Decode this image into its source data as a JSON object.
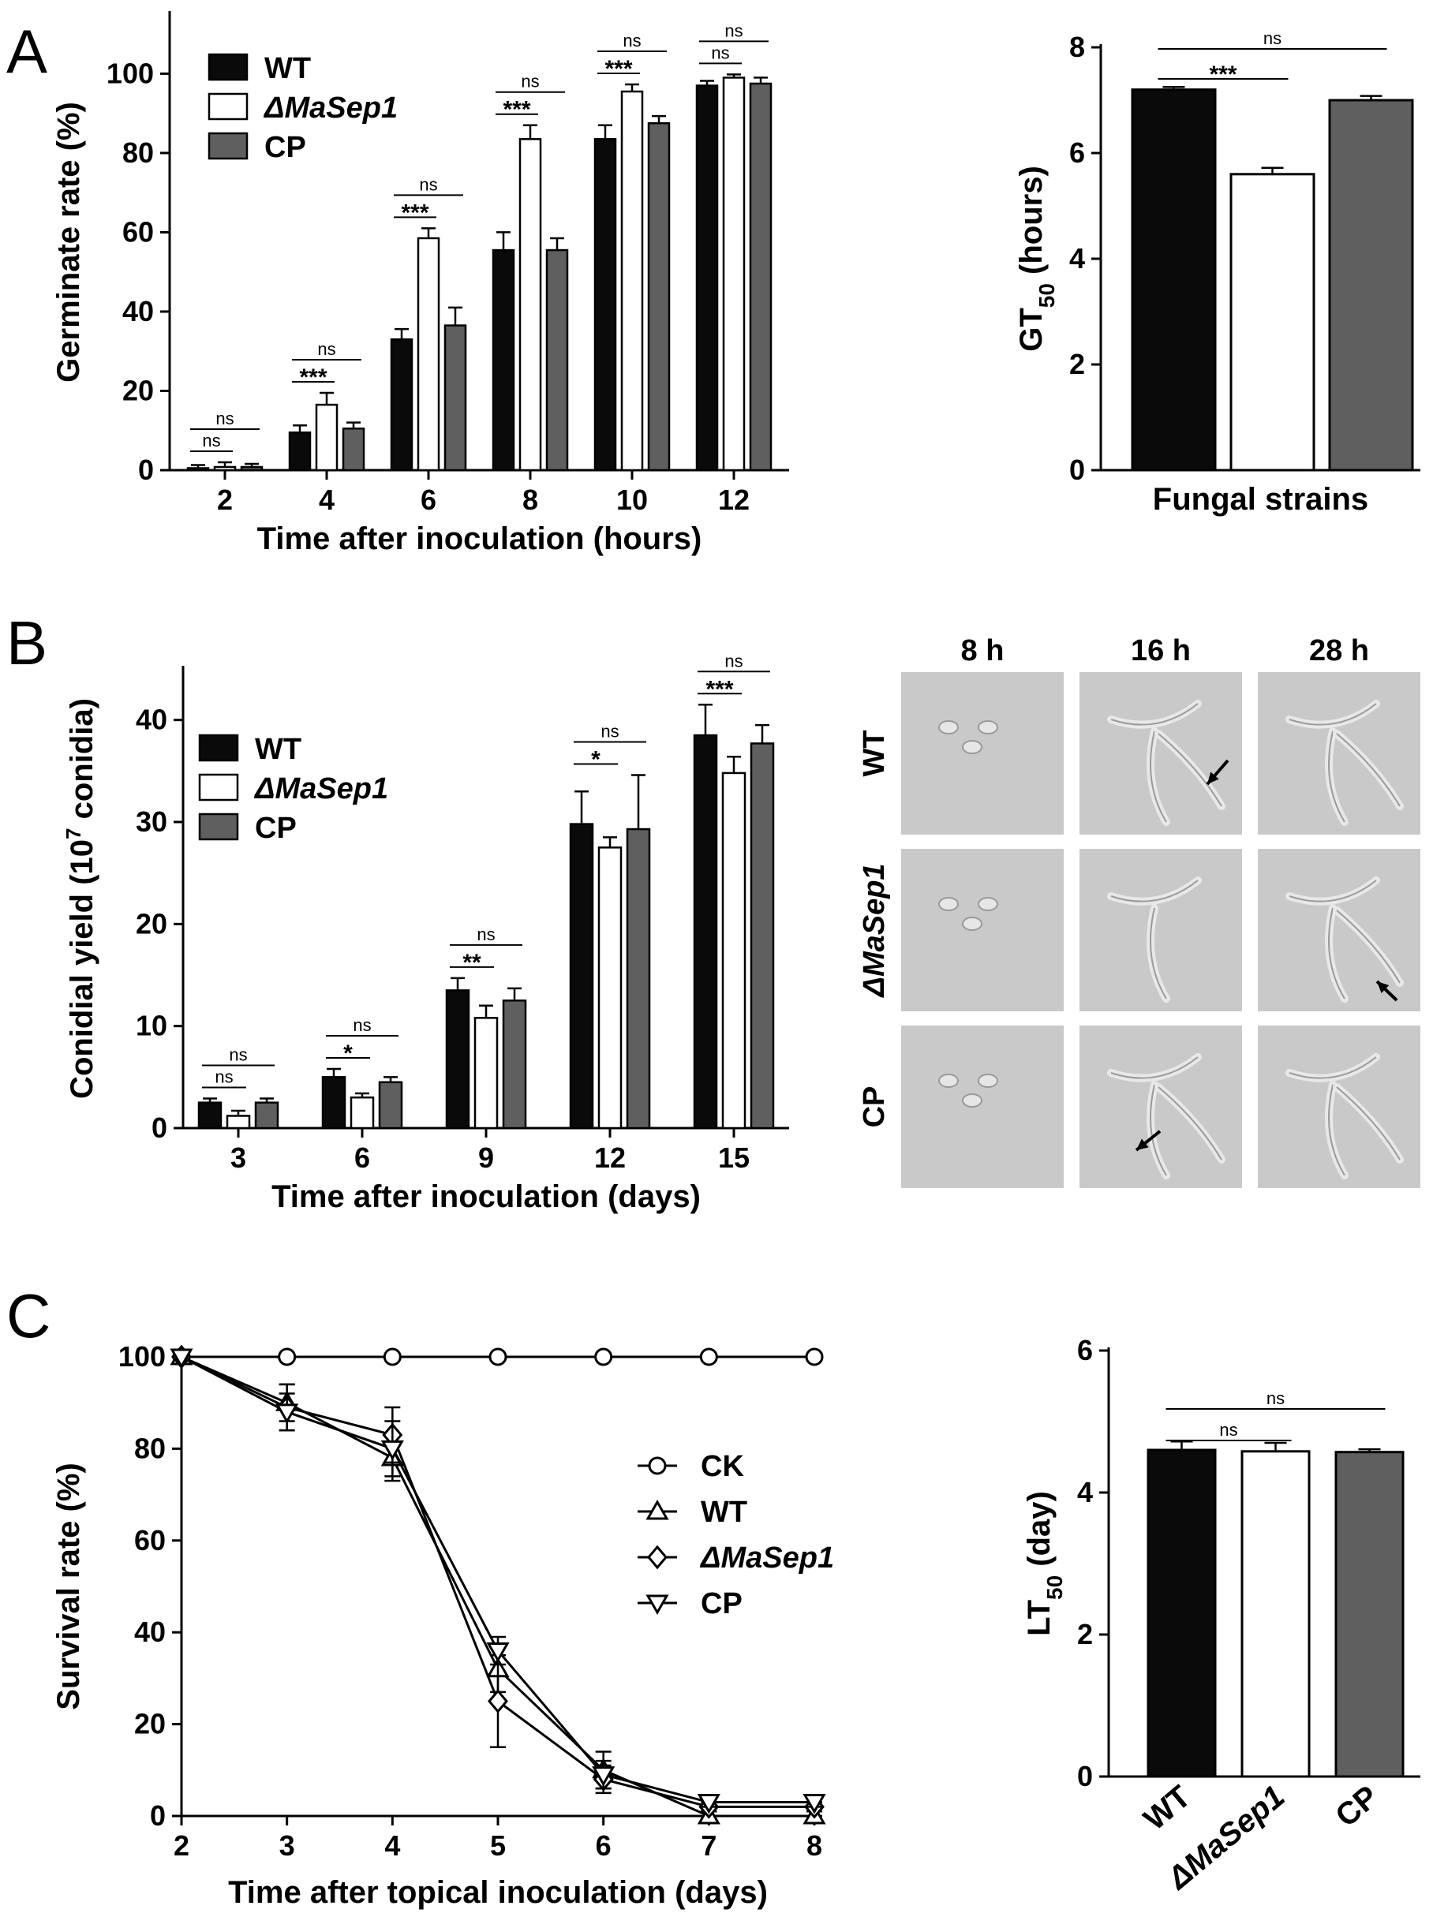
{
  "panels": {
    "a": "A",
    "b": "B",
    "c": "C"
  },
  "colors": {
    "WT": "#0a0a0a",
    "ΔMaSep1": "#ffffff",
    "CP": "#5f5f5f",
    "axis": "#000000"
  },
  "chart_data": [
    {
      "id": "A_left",
      "type": "bar",
      "xlabel": "Time after inoculation (hours)",
      "ylabel": "Germinate rate (%)",
      "ylim": [
        0,
        100
      ],
      "yticks": [
        0,
        20,
        40,
        60,
        80,
        100
      ],
      "categories": [
        "2",
        "4",
        "6",
        "8",
        "10",
        "12"
      ],
      "legend": {
        "position": "top-left"
      },
      "series": [
        {
          "name": "WT",
          "values": [
            0.5,
            9.5,
            33,
            55.5,
            83.5,
            97
          ],
          "err": [
            0.8,
            1.8,
            2.6,
            4.5,
            3.5,
            1.2
          ]
        },
        {
          "name": "ΔMaSep1",
          "values": [
            0.8,
            16.5,
            58.5,
            83.5,
            95.5,
            99
          ],
          "err": [
            1.2,
            3.0,
            2.5,
            3.5,
            1.8,
            0.8
          ]
        },
        {
          "name": "CP",
          "values": [
            0.8,
            10.5,
            36.5,
            55.5,
            87.5,
            97.5
          ],
          "err": [
            0.8,
            1.5,
            4.5,
            3.0,
            1.8,
            1.5
          ]
        }
      ],
      "significance": [
        {
          "category": "2",
          "lower": "ns",
          "upper": "ns"
        },
        {
          "category": "4",
          "lower": "***",
          "upper": "ns"
        },
        {
          "category": "6",
          "lower": "***",
          "upper": "ns"
        },
        {
          "category": "8",
          "lower": "***",
          "upper": "ns"
        },
        {
          "category": "10",
          "lower": "***",
          "upper": "ns"
        },
        {
          "category": "12",
          "lower": "ns",
          "upper": "ns"
        }
      ]
    },
    {
      "id": "A_right",
      "type": "bar",
      "xlabel": "Fungal strains",
      "ylabel": "GT",
      "ylabel_sub": "50",
      "ylabel_unit": " (hours)",
      "ylim": [
        0,
        8
      ],
      "yticks": [
        0,
        2,
        4,
        6,
        8
      ],
      "categories": [
        "WT",
        "ΔMaSep1",
        "CP"
      ],
      "values": [
        7.2,
        5.6,
        7.0
      ],
      "err": [
        0.05,
        0.12,
        0.08
      ],
      "significance": [
        {
          "pair": [
            "WT",
            "ΔMaSep1"
          ],
          "label": "***"
        },
        {
          "pair": [
            "WT",
            "CP"
          ],
          "label": "ns"
        }
      ]
    },
    {
      "id": "B_left",
      "type": "bar",
      "xlabel": "Time after inoculation (days)",
      "ylabel": "Conidial yield (10",
      "ylabel_sup": "7",
      "ylabel_unit": " conidia)",
      "ylim": [
        0,
        45
      ],
      "yticks": [
        0,
        10,
        20,
        30,
        40
      ],
      "categories": [
        "3",
        "6",
        "9",
        "12",
        "15"
      ],
      "legend": {
        "position": "left"
      },
      "series": [
        {
          "name": "WT",
          "values": [
            2.5,
            5.0,
            13.5,
            29.8,
            38.5
          ],
          "err": [
            0.4,
            0.8,
            1.2,
            3.2,
            3.0
          ]
        },
        {
          "name": "ΔMaSep1",
          "values": [
            1.2,
            3.0,
            10.8,
            27.5,
            34.8
          ],
          "err": [
            0.5,
            0.4,
            1.2,
            1.0,
            1.6
          ]
        },
        {
          "name": "CP",
          "values": [
            2.5,
            4.5,
            12.5,
            29.3,
            37.7
          ],
          "err": [
            0.4,
            0.5,
            1.2,
            5.3,
            1.8
          ]
        }
      ],
      "significance": [
        {
          "category": "3",
          "lower": "ns",
          "upper": "ns"
        },
        {
          "category": "6",
          "lower": "*",
          "upper": "ns"
        },
        {
          "category": "9",
          "lower": "**",
          "upper": "ns"
        },
        {
          "category": "12",
          "lower": "*",
          "upper": "ns"
        },
        {
          "category": "15",
          "lower": "***",
          "upper": "ns"
        }
      ]
    },
    {
      "id": "C_left",
      "type": "line",
      "xlabel": "Time after topical inoculation (days)",
      "ylabel": "Survival rate (%)",
      "x": [
        2,
        3,
        4,
        5,
        6,
        7,
        8
      ],
      "xlim": [
        2,
        8
      ],
      "ylim": [
        0,
        100
      ],
      "yticks": [
        0,
        20,
        40,
        60,
        80,
        100
      ],
      "legend": {
        "position": "center-right"
      },
      "series": [
        {
          "name": "CK",
          "marker": "circle",
          "values": [
            100,
            100,
            100,
            100,
            100,
            100,
            100
          ],
          "err": [
            0,
            0,
            0,
            0,
            0,
            0,
            0
          ]
        },
        {
          "name": "WT",
          "marker": "triangle-up",
          "values": [
            100,
            90,
            78,
            32,
            10,
            0,
            0
          ],
          "err": [
            0,
            4,
            5,
            5,
            4,
            1,
            1
          ]
        },
        {
          "name": "ΔMaSep1",
          "marker": "diamond",
          "values": [
            100,
            89,
            83,
            25,
            8,
            2,
            2
          ],
          "err": [
            0,
            5,
            6,
            10,
            3,
            1,
            1
          ]
        },
        {
          "name": "CP",
          "marker": "triangle-down",
          "values": [
            100,
            88,
            80,
            36,
            9,
            3,
            3
          ],
          "err": [
            0,
            4,
            6,
            3,
            3,
            1,
            1
          ]
        }
      ]
    },
    {
      "id": "C_right",
      "type": "bar",
      "ylabel": "LT",
      "ylabel_sub": "50",
      "ylabel_unit": " (day)",
      "ylim": [
        0,
        6
      ],
      "yticks": [
        0,
        2,
        4,
        6
      ],
      "categories": [
        "WT",
        "ΔMaSep1",
        "CP"
      ],
      "values": [
        4.6,
        4.58,
        4.57
      ],
      "err": [
        0.12,
        0.12,
        0.04
      ],
      "significance": [
        {
          "pair": [
            "WT",
            "ΔMaSep1"
          ],
          "label": "ns"
        },
        {
          "pair": [
            "WT",
            "CP"
          ],
          "label": "ns"
        }
      ]
    }
  ],
  "micrographs": {
    "columns": [
      "8 h",
      "16 h",
      "28 h"
    ],
    "rows": [
      "WT",
      "ΔMaSep1",
      "CP"
    ]
  }
}
